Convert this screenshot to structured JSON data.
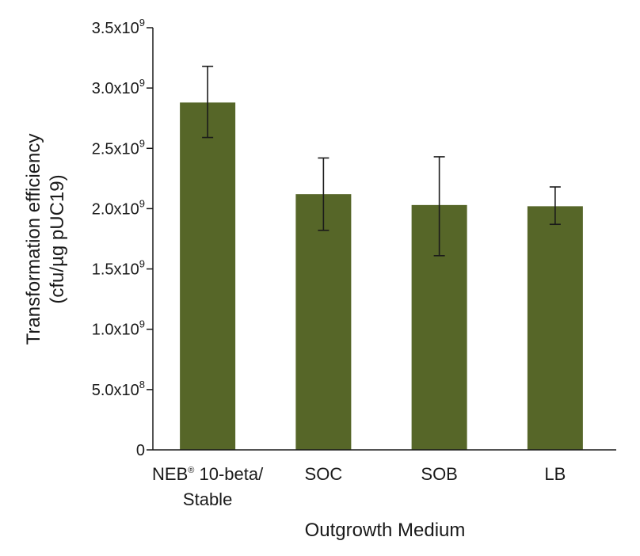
{
  "chart_data": {
    "type": "bar",
    "categories": [
      [
        "NEB® 10-beta/",
        "Stable"
      ],
      [
        "SOC"
      ],
      [
        "SOB"
      ],
      [
        "LB"
      ]
    ],
    "values": [
      2880000000.0,
      2120000000.0,
      2030000000.0,
      2020000000.0
    ],
    "error_low": [
      2590000000.0,
      1820000000.0,
      1610000000.0,
      1870000000.0
    ],
    "error_high": [
      3180000000.0,
      2420000000.0,
      2430000000.0,
      2180000000.0
    ],
    "bar_color": "#566628",
    "error_color": "#1a1a1a",
    "ylim": [
      0,
      3500000000.0
    ],
    "yticks": [
      {
        "value": 0,
        "mantissa": "0",
        "exp": ""
      },
      {
        "value": 500000000.0,
        "mantissa": "5.0x10",
        "exp": "8"
      },
      {
        "value": 1000000000.0,
        "mantissa": "1.0x10",
        "exp": "9"
      },
      {
        "value": 1500000000.0,
        "mantissa": "1.5x10",
        "exp": "9"
      },
      {
        "value": 2000000000.0,
        "mantissa": "2.0x10",
        "exp": "9"
      },
      {
        "value": 2500000000.0,
        "mantissa": "2.5x10",
        "exp": "9"
      },
      {
        "value": 3000000000.0,
        "mantissa": "3.0x10",
        "exp": "9"
      },
      {
        "value": 3500000000.0,
        "mantissa": "3.5x10",
        "exp": "9"
      }
    ],
    "ylabel": [
      "Transformation efficiency",
      "(cfu/µg pUC19)"
    ],
    "xlabel": "Outgrowth Medium",
    "grid": false,
    "legend": "none"
  }
}
